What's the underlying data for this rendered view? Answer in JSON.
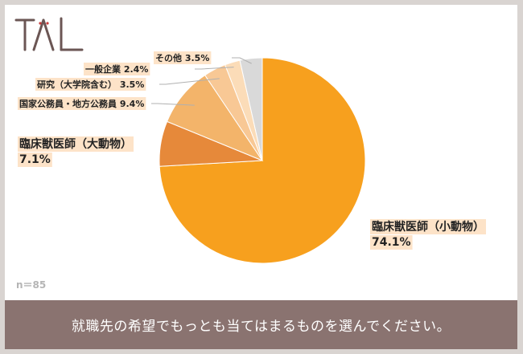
{
  "logo": {
    "text": "TAL",
    "color": "#6b5654"
  },
  "sample_size": "n＝85",
  "question": "就職先の希望でもっとも当てはまるものを選んでください。",
  "colors": {
    "main": "#f7a01e",
    "large_animal": "#e6893a",
    "public": "#f3b46a",
    "research": "#f8c895",
    "company": "#fbdcb8",
    "other": "#d9d9d9",
    "label_bg": "#fde3c8",
    "footer": "#8a7370"
  },
  "chart_data": {
    "type": "pie",
    "title": "",
    "slices": [
      {
        "label": "臨床獣医師（小動物）",
        "value": 74.1,
        "value_label": "74.1%",
        "color_key": "main"
      },
      {
        "label": "臨床獣医師（大動物）",
        "value": 7.1,
        "value_label": "7.1%",
        "color_key": "large_animal"
      },
      {
        "label": "国家公務員・地方公務員",
        "value": 9.4,
        "value_label": "9.4%",
        "color_key": "public"
      },
      {
        "label": "研究（大学院含む）",
        "value": 3.5,
        "value_label": "3.5%",
        "color_key": "research"
      },
      {
        "label": "一般企業",
        "value": 2.4,
        "value_label": "2.4%",
        "color_key": "company"
      },
      {
        "label": "その他",
        "value": 3.5,
        "value_label": "3.5%",
        "color_key": "other"
      }
    ]
  }
}
